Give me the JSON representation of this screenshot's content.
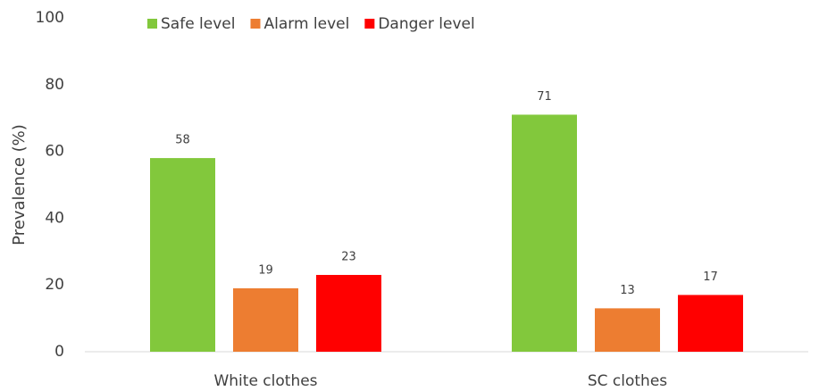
{
  "chart_data": {
    "type": "bar",
    "y_label": "Prevalence (%)",
    "categories": [
      "White clothes",
      "SC clothes"
    ],
    "series": [
      {
        "name": "Safe level",
        "color": "#82c83c",
        "values": [
          58,
          71
        ]
      },
      {
        "name": "Alarm level",
        "color": "#ed7d31",
        "values": [
          19,
          13
        ]
      },
      {
        "name": "Danger level",
        "color": "#ff0000",
        "values": [
          23,
          17
        ]
      }
    ],
    "ylim": [
      0,
      100
    ],
    "yticks": [
      0,
      20,
      40,
      60,
      80,
      100
    ],
    "grid": false,
    "legend": "top"
  }
}
